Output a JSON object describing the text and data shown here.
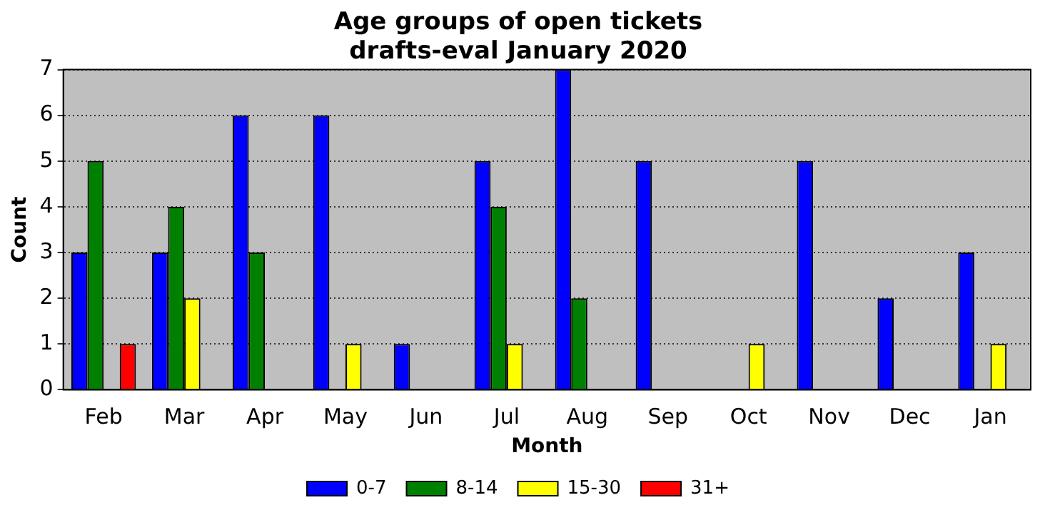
{
  "chart_data": {
    "type": "bar",
    "title": "Age groups of open tickets",
    "subtitle": "drafts-eval January 2020",
    "xlabel": "Month",
    "ylabel": "Count",
    "categories": [
      "Feb",
      "Mar",
      "Apr",
      "May",
      "Jun",
      "Jul",
      "Aug",
      "Sep",
      "Oct",
      "Nov",
      "Dec",
      "Jan"
    ],
    "series": [
      {
        "name": "0-7",
        "color": "#0000ff",
        "values": [
          3,
          3,
          6,
          6,
          1,
          5,
          7,
          5,
          0,
          5,
          2,
          3
        ]
      },
      {
        "name": "8-14",
        "color": "#008000",
        "values": [
          5,
          4,
          3,
          0,
          0,
          4,
          2,
          0,
          0,
          0,
          0,
          0
        ]
      },
      {
        "name": "15-30",
        "color": "#ffff00",
        "values": [
          0,
          2,
          0,
          1,
          0,
          1,
          0,
          0,
          1,
          0,
          0,
          1
        ]
      },
      {
        "name": "31+",
        "color": "#ff0000",
        "values": [
          1,
          0,
          0,
          0,
          0,
          0,
          0,
          0,
          0,
          0,
          0,
          0
        ]
      }
    ],
    "ylim": [
      0,
      7
    ],
    "yticks": [
      0,
      1,
      2,
      3,
      4,
      5,
      6,
      7
    ],
    "grid": "y",
    "legend": "bottom"
  }
}
